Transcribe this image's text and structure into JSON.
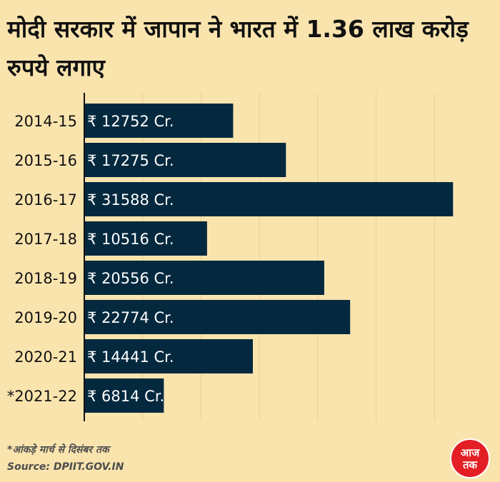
{
  "title": "मोदी सरकार में जापान ने भारत में 1.36 लाख करोड़ रुपये लगाए",
  "footnote": "*आंकड़े मार्च से दिसंबर तक",
  "source": "Source: DPIIT.GOV.IN",
  "logo": {
    "text": "आज तक",
    "color": "#e41e25"
  },
  "chart_data": {
    "type": "bar",
    "orientation": "horizontal",
    "categories": [
      "2014-15",
      "2015-16",
      "2016-17",
      "2017-18",
      "2018-19",
      "2019-20",
      "2020-21",
      "*2021-22"
    ],
    "values": [
      12752,
      17275,
      31588,
      10516,
      20556,
      22774,
      14441,
      6814
    ],
    "data_labels": [
      "₹ 12752 Cr.",
      "₹ 17275 Cr.",
      "₹ 31588 Cr.",
      "₹ 10516 Cr.",
      "₹ 20556 Cr.",
      "₹ 22774 Cr.",
      "₹ 14441 Cr.",
      "₹ 6814 Cr."
    ],
    "xlim": [
      0,
      35000
    ],
    "grid": true,
    "bar_color": "#04293f",
    "label_color": "#ffffff"
  }
}
